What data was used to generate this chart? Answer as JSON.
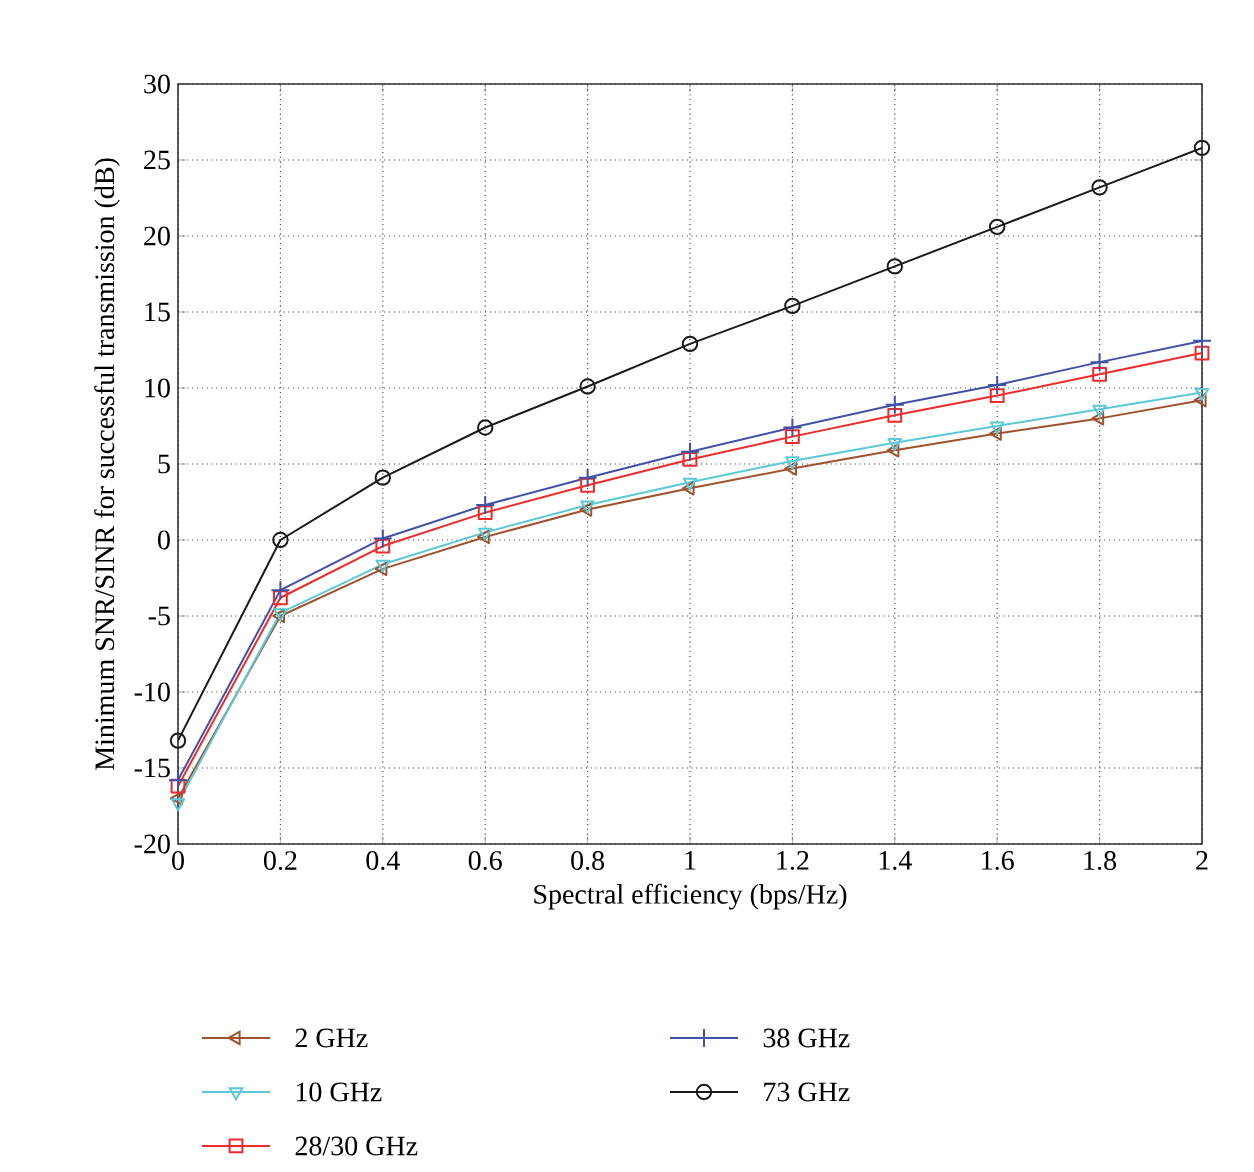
{
  "chart_data": {
    "type": "line",
    "xlabel": "Spectral efficiency (bps/Hz)",
    "ylabel": "Minimum SNR/SINR for successful transmission (dB)",
    "x": [
      0,
      0.2,
      0.4,
      0.6,
      0.8,
      1,
      1.2,
      1.4,
      1.6,
      1.8,
      2
    ],
    "xlim": [
      0,
      2
    ],
    "xticks": [
      0,
      0.2,
      0.4,
      0.6,
      0.8,
      1,
      1.2,
      1.4,
      1.6,
      1.8,
      2
    ],
    "ylim": [
      -20,
      30
    ],
    "yticks": [
      -20,
      -15,
      -10,
      -5,
      0,
      5,
      10,
      15,
      20,
      25,
      30
    ],
    "grid": true,
    "legend": "bottom",
    "series": [
      {
        "name": "2 GHz",
        "color": "#a0522d",
        "marker": "triangle",
        "values": [
          -17,
          -5,
          -1.9,
          0.2,
          2.0,
          3.4,
          4.7,
          5.9,
          7.0,
          8.0,
          9.2
        ]
      },
      {
        "name": "10 GHz",
        "color": "#5bc8d8",
        "marker": "triangle",
        "values": [
          -17.3,
          -4.8,
          -1.6,
          0.5,
          2.3,
          3.8,
          5.2,
          6.4,
          7.5,
          8.6,
          9.7
        ]
      },
      {
        "name": "28/30 GHz",
        "color": "#ee2a2a",
        "marker": "square",
        "values": [
          -16.2,
          -3.8,
          -0.4,
          1.8,
          3.6,
          5.3,
          6.8,
          8.2,
          9.5,
          10.9,
          12.3
        ]
      },
      {
        "name": "38 GHz",
        "color": "#3f51a8",
        "marker": "cross",
        "values": [
          -15.8,
          -3.3,
          0.1,
          2.3,
          4.1,
          5.8,
          7.4,
          8.9,
          10.2,
          11.7,
          13.1
        ]
      },
      {
        "name": "73 GHz",
        "color": "#1a1a1a",
        "marker": "circle",
        "values": [
          -13.2,
          0,
          4.1,
          7.4,
          10.1,
          12.9,
          15.4,
          18,
          20.6,
          23.2,
          25.8
        ]
      }
    ]
  }
}
